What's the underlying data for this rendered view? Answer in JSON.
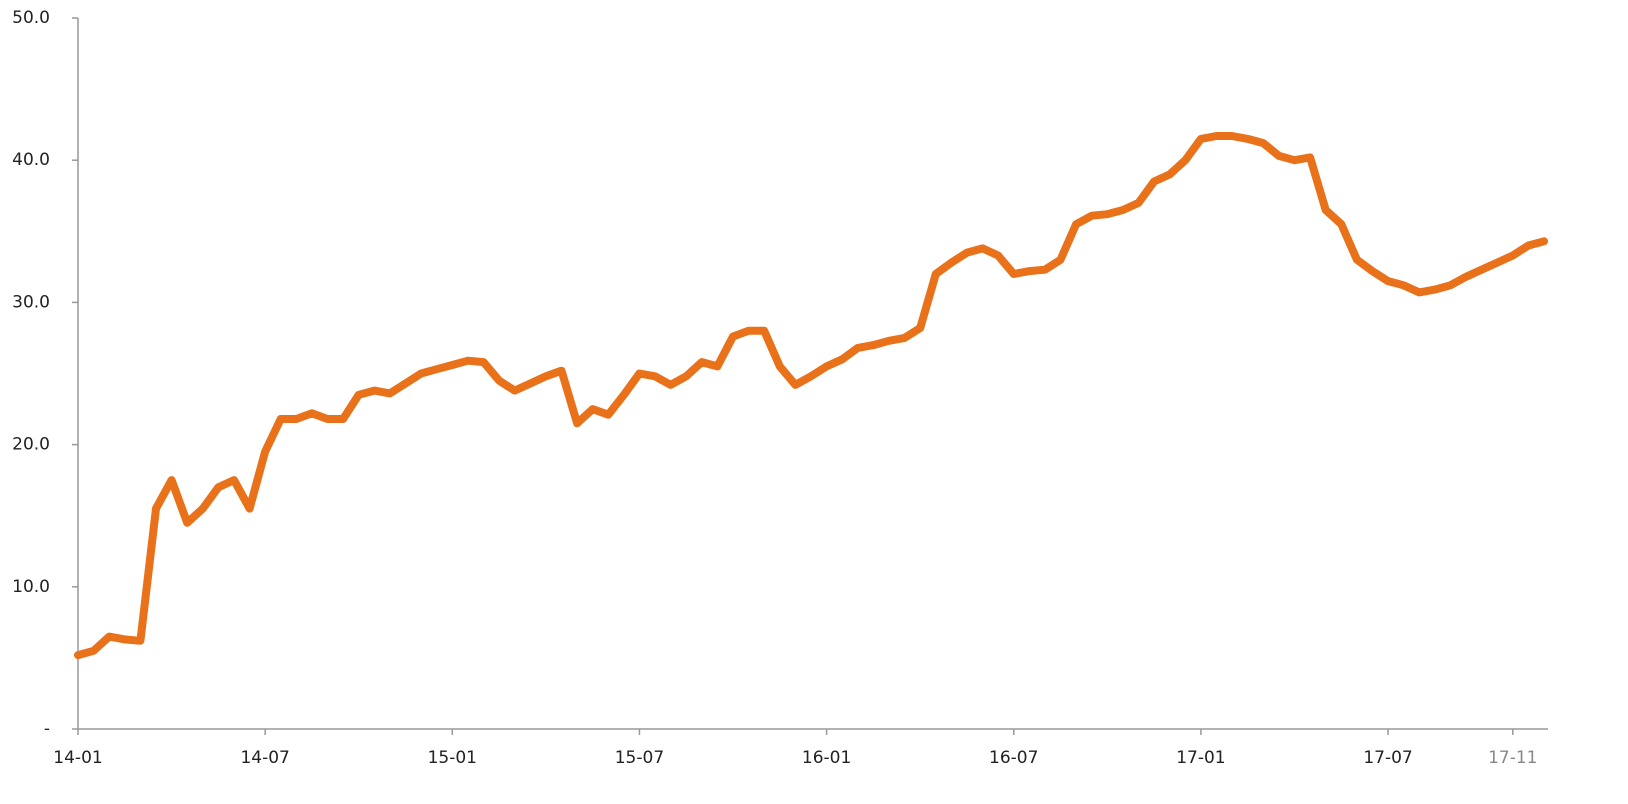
{
  "chart_data": {
    "type": "line",
    "categories": [
      "14-01",
      null,
      null,
      null,
      null,
      null,
      null,
      null,
      null,
      null,
      null,
      null,
      "14-07",
      null,
      null,
      null,
      null,
      null,
      null,
      null,
      null,
      null,
      null,
      null,
      "15-01",
      null,
      null,
      null,
      null,
      null,
      null,
      null,
      null,
      null,
      null,
      null,
      "15-07",
      null,
      null,
      null,
      null,
      null,
      null,
      null,
      null,
      null,
      null,
      null,
      "16-01",
      null,
      null,
      null,
      null,
      null,
      null,
      null,
      null,
      null,
      null,
      null,
      "16-07",
      null,
      null,
      null,
      null,
      null,
      null,
      null,
      null,
      null,
      null,
      null,
      "17-01",
      null,
      null,
      null,
      null,
      null,
      null,
      null,
      null,
      null,
      null,
      null,
      "17-07",
      null,
      null,
      null,
      null,
      null,
      null,
      null,
      "17-11",
      null,
      null
    ],
    "series": [
      {
        "color": "#e8711a",
        "values": [
          5.2,
          5.5,
          6.5,
          6.3,
          6.2,
          15.5,
          17.5,
          14.5,
          15.5,
          17.0,
          17.5,
          15.5,
          19.5,
          21.8,
          21.8,
          22.2,
          21.8,
          21.8,
          23.5,
          23.8,
          23.6,
          24.3,
          25.0,
          25.3,
          25.6,
          25.9,
          25.8,
          24.5,
          23.8,
          24.3,
          24.8,
          25.2,
          21.5,
          22.5,
          22.1,
          23.5,
          25.0,
          24.8,
          24.2,
          24.8,
          25.8,
          25.5,
          27.6,
          28.0,
          28.0,
          25.5,
          24.2,
          24.8,
          25.5,
          26.0,
          26.8,
          27.0,
          27.3,
          27.5,
          28.2,
          32.0,
          32.8,
          33.5,
          33.8,
          33.3,
          32.0,
          32.2,
          32.3,
          33.0,
          35.5,
          36.1,
          36.2,
          36.5,
          37.0,
          38.5,
          39.0,
          40.0,
          41.5,
          41.7,
          41.7,
          41.5,
          41.2,
          40.3,
          40.0,
          40.2,
          36.5,
          35.5,
          33.0,
          32.2,
          31.5,
          31.2,
          30.7,
          30.9,
          31.2,
          31.8,
          32.3,
          32.8,
          33.3,
          34.0,
          34.3
        ]
      }
    ],
    "ylim": [
      0,
      50
    ],
    "yticks": [
      {
        "value": 0,
        "label": "-"
      },
      {
        "value": 10,
        "label": "10.0"
      },
      {
        "value": 20,
        "label": "20.0"
      },
      {
        "value": 30,
        "label": "30.0"
      },
      {
        "value": 40,
        "label": "40.0"
      },
      {
        "value": 50,
        "label": "50.0"
      }
    ],
    "grid": false
  }
}
